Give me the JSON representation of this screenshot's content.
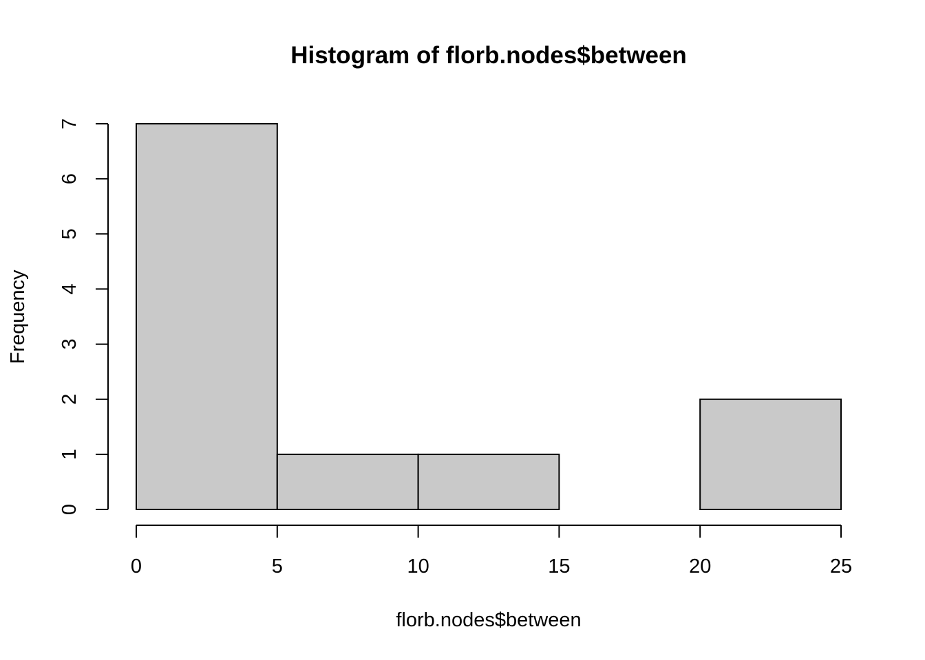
{
  "chart_data": {
    "type": "bar",
    "title": "Histogram of florb.nodes$between",
    "xlabel": "florb.nodes$between",
    "ylabel": "Frequency",
    "bins": [
      {
        "from": 0,
        "to": 5,
        "count": 7
      },
      {
        "from": 5,
        "to": 10,
        "count": 1
      },
      {
        "from": 10,
        "to": 15,
        "count": 1
      },
      {
        "from": 15,
        "to": 20,
        "count": 0
      },
      {
        "from": 20,
        "to": 25,
        "count": 2
      }
    ],
    "xlim": [
      0,
      25
    ],
    "ylim": [
      0,
      7
    ],
    "xticks": [
      0,
      5,
      10,
      15,
      20,
      25
    ],
    "yticks": [
      0,
      1,
      2,
      3,
      4,
      5,
      6,
      7
    ],
    "xtick_labels": [
      "0",
      "5",
      "10",
      "15",
      "20",
      "25"
    ],
    "ytick_labels": [
      "0",
      "1",
      "2",
      "3",
      "4",
      "5",
      "6",
      "7"
    ],
    "grid": false,
    "legend": "none",
    "bar_fill": "#c9c9c9",
    "bar_stroke": "#000000"
  }
}
